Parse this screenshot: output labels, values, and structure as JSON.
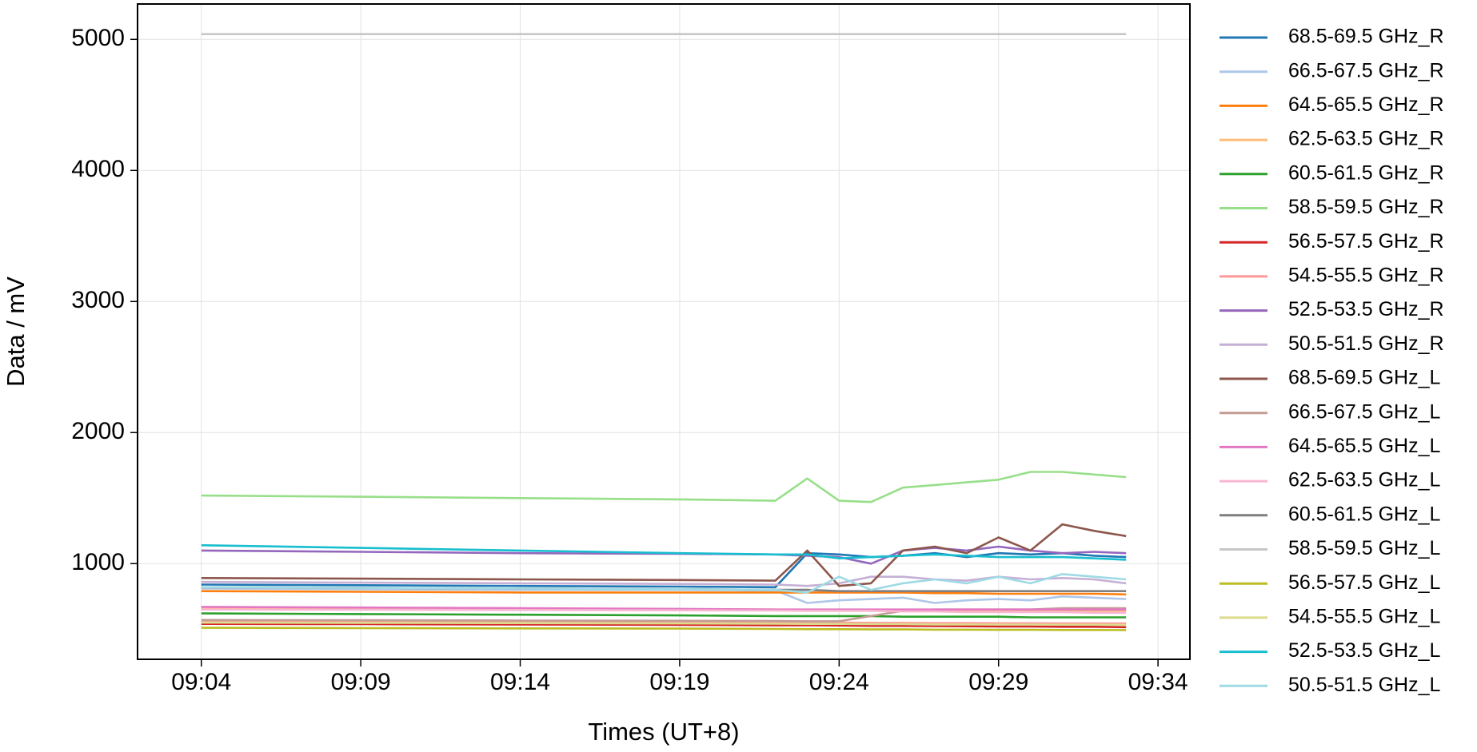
{
  "chart_data": {
    "type": "line",
    "x_label": "Times (UT+8)",
    "y_label": "Data / mV",
    "x": [
      "09:04",
      "09:09",
      "09:14",
      "09:19",
      "09:22",
      "09:23",
      "09:24",
      "09:25",
      "09:26",
      "09:27",
      "09:28",
      "09:29",
      "09:30",
      "09:31",
      "09:32",
      "09:33"
    ],
    "xlim": [
      "09:02",
      "09:35"
    ],
    "xticks": [
      "09:04",
      "09:09",
      "09:14",
      "09:19",
      "09:24",
      "09:29",
      "09:34"
    ],
    "ylim": [
      270,
      5270
    ],
    "yticks": [
      1000,
      2000,
      3000,
      4000,
      5000
    ],
    "grid": true,
    "legend": "outside right",
    "series": [
      {
        "name": "68.5-69.5 GHz_R",
        "color": "#1f77b4",
        "values": [
          840,
          835,
          830,
          825,
          820,
          1080,
          1070,
          1050,
          1060,
          1080,
          1050,
          1080,
          1070,
          1080,
          1060,
          1050
        ]
      },
      {
        "name": "66.5-67.5 GHz_R",
        "color": "#aec7e8",
        "values": [
          810,
          805,
          800,
          800,
          795,
          700,
          720,
          730,
          740,
          700,
          720,
          730,
          720,
          750,
          740,
          730
        ]
      },
      {
        "name": "64.5-65.5 GHz_R",
        "color": "#ff7f0e",
        "values": [
          790,
          785,
          780,
          780,
          780,
          780,
          780,
          780,
          780,
          775,
          775,
          770,
          770,
          770,
          770,
          765
        ]
      },
      {
        "name": "62.5-63.5 GHz_R",
        "color": "#ffbb78",
        "values": [
          660,
          655,
          650,
          650,
          650,
          640,
          650,
          640,
          640,
          640,
          640,
          640,
          640,
          640,
          640,
          640
        ]
      },
      {
        "name": "60.5-61.5 GHz_R",
        "color": "#2ca02c",
        "values": [
          620,
          615,
          610,
          605,
          600,
          600,
          600,
          600,
          595,
          595,
          595,
          595,
          590,
          590,
          590,
          590
        ]
      },
      {
        "name": "58.5-59.5 GHz_R",
        "color": "#98df8a",
        "values": [
          1520,
          1510,
          1500,
          1490,
          1480,
          1650,
          1480,
          1470,
          1580,
          1600,
          1620,
          1640,
          1700,
          1700,
          1680,
          1660
        ]
      },
      {
        "name": "56.5-57.5 GHz_R",
        "color": "#d62728",
        "values": [
          540,
          538,
          535,
          533,
          530,
          530,
          528,
          525,
          525,
          523,
          522,
          520,
          520,
          518,
          518,
          515
        ]
      },
      {
        "name": "54.5-55.5 GHz_R",
        "color": "#ff9896",
        "values": [
          560,
          558,
          556,
          554,
          552,
          550,
          550,
          548,
          548,
          546,
          546,
          545,
          545,
          544,
          544,
          543
        ]
      },
      {
        "name": "52.5-53.5 GHz_R",
        "color": "#9467bd",
        "values": [
          1100,
          1090,
          1080,
          1075,
          1070,
          1060,
          1050,
          1000,
          1100,
          1120,
          1100,
          1130,
          1100,
          1080,
          1090,
          1080
        ]
      },
      {
        "name": "50.5-51.5 GHz_R",
        "color": "#c5b0d5",
        "values": [
          860,
          855,
          850,
          845,
          840,
          830,
          850,
          900,
          900,
          880,
          870,
          900,
          880,
          890,
          880,
          850
        ]
      },
      {
        "name": "68.5-69.5 GHz_L",
        "color": "#8c564b",
        "values": [
          890,
          885,
          880,
          875,
          870,
          1100,
          830,
          850,
          1100,
          1130,
          1080,
          1200,
          1100,
          1300,
          1250,
          1210
        ]
      },
      {
        "name": "66.5-67.5 GHz_L",
        "color": "#c49c94",
        "values": [
          570,
          568,
          566,
          564,
          562,
          560,
          560,
          600,
          640,
          650,
          650,
          650,
          650,
          660,
          660,
          660
        ]
      },
      {
        "name": "64.5-65.5 GHz_L",
        "color": "#e377c2",
        "values": [
          670,
          665,
          660,
          655,
          650,
          650,
          650,
          650,
          650,
          650,
          650,
          650,
          650,
          650,
          650,
          650
        ]
      },
      {
        "name": "62.5-63.5 GHz_L",
        "color": "#f7b6d2",
        "values": [
          650,
          648,
          646,
          644,
          642,
          640,
          640,
          640,
          635,
          635,
          630,
          630,
          630,
          630,
          625,
          625
        ]
      },
      {
        "name": "60.5-61.5 GHz_L",
        "color": "#7f7f7f",
        "values": [
          820,
          815,
          810,
          805,
          800,
          800,
          790,
          790,
          790,
          790,
          790,
          790,
          790,
          790,
          790,
          790
        ]
      },
      {
        "name": "58.5-59.5 GHz_L",
        "color": "#c7c7c7",
        "values": [
          5040,
          5040,
          5040,
          5040,
          5040,
          5040,
          5040,
          5040,
          5040,
          5040,
          5040,
          5040,
          5040,
          5040,
          5040,
          5040
        ]
      },
      {
        "name": "56.5-57.5 GHz_L",
        "color": "#bcbd22",
        "values": [
          510,
          508,
          506,
          504,
          502,
          500,
          500,
          498,
          498,
          496,
          496,
          495,
          495,
          494,
          494,
          493
        ]
      },
      {
        "name": "54.5-55.5 GHz_L",
        "color": "#dbdb8d",
        "values": [
          550,
          548,
          546,
          544,
          542,
          540,
          540,
          538,
          538,
          536,
          536,
          535,
          535,
          534,
          534,
          533
        ]
      },
      {
        "name": "52.5-53.5 GHz_L",
        "color": "#17becf",
        "values": [
          1140,
          1120,
          1100,
          1080,
          1070,
          1070,
          1040,
          1050,
          1060,
          1070,
          1060,
          1050,
          1050,
          1050,
          1040,
          1030
        ]
      },
      {
        "name": "50.5-51.5 GHz_L",
        "color": "#9edae5",
        "values": [
          820,
          815,
          810,
          805,
          800,
          780,
          900,
          800,
          850,
          880,
          850,
          900,
          850,
          920,
          900,
          880
        ]
      }
    ]
  }
}
